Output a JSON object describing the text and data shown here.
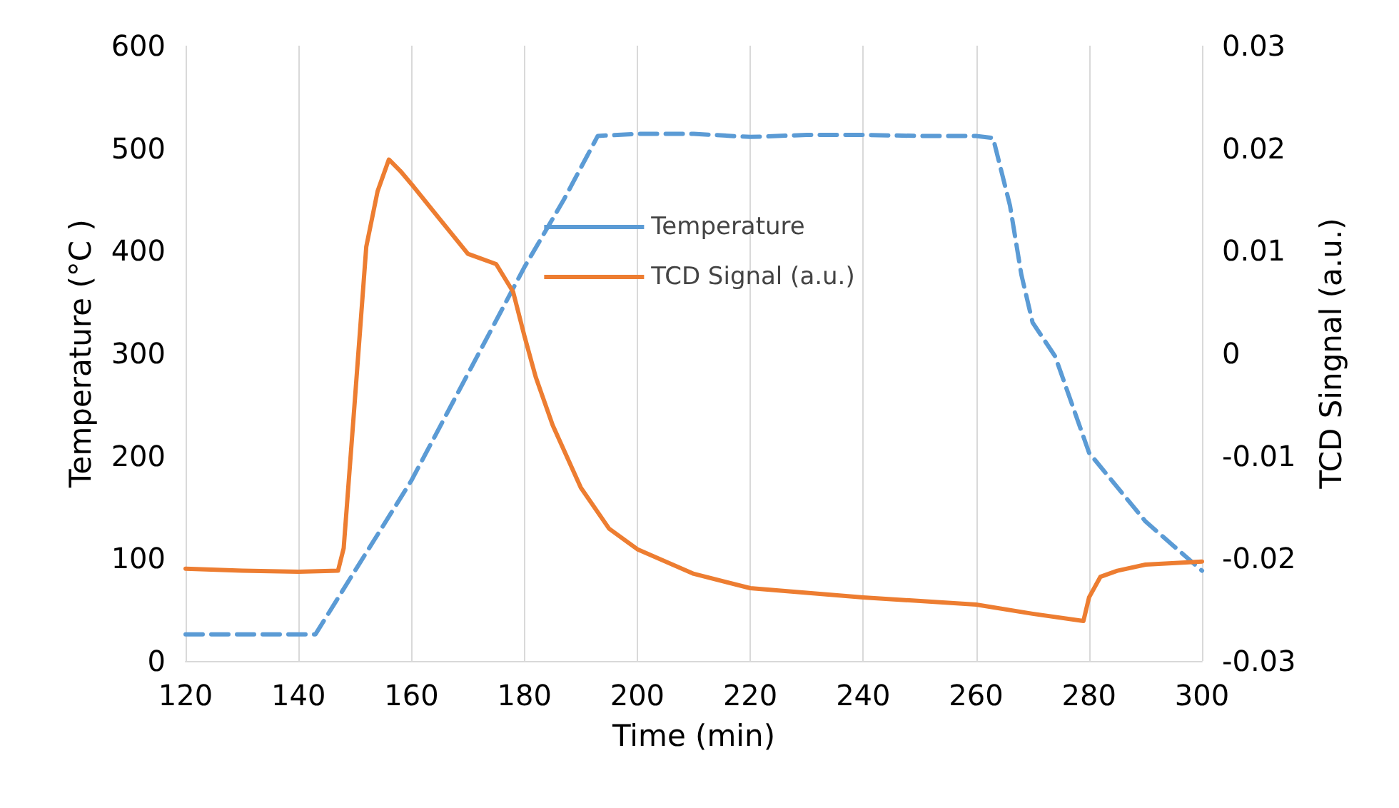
{
  "chart_data": {
    "type": "line",
    "xlabel": "Time (min)",
    "ylabel": "Temperature (°C )",
    "y2label": "TCD Singnal (a.u.)",
    "xlim": [
      120,
      300
    ],
    "xticks": [
      120,
      140,
      160,
      180,
      200,
      220,
      240,
      260,
      280,
      300
    ],
    "ylim": [
      0,
      600
    ],
    "yticks": [
      0,
      100,
      200,
      300,
      400,
      500,
      600
    ],
    "y2lim": [
      -0.03,
      0.03
    ],
    "y2ticks": [
      -0.03,
      -0.02,
      -0.01,
      0,
      0.01,
      0.02,
      0.03
    ],
    "grid": "x",
    "legend": "top",
    "marker": "none",
    "series": [
      {
        "name": "Temperature",
        "color": "#5b9bd5",
        "line_style": "dashed",
        "x": [
          120,
          130,
          143,
          150,
          160,
          170,
          180,
          187,
          193,
          200,
          210,
          220,
          230,
          240,
          250,
          260,
          263,
          266,
          268,
          270,
          274,
          280,
          290,
          300
        ],
        "values": [
          26,
          26,
          26,
          88,
          176,
          280,
          384,
          450,
          512,
          514,
          514,
          511,
          513,
          513,
          512,
          512,
          510,
          444,
          377,
          330,
          297,
          203,
          136,
          88
        ]
      },
      {
        "name": "TCD Signal (a.u.)",
        "color": "#ed7d31",
        "line_style": "solid",
        "axis": "y2",
        "x": [
          120,
          130,
          140,
          147,
          148,
          150,
          152,
          154,
          156,
          158,
          160,
          165,
          170,
          175,
          178,
          180,
          182,
          185,
          190,
          195,
          200,
          210,
          220,
          240,
          260,
          270,
          279,
          280,
          282,
          285,
          290,
          300
        ],
        "values": [
          -0.021,
          -0.0212,
          -0.0213,
          -0.0212,
          -0.019,
          -0.0044,
          0.0104,
          0.0158,
          0.0189,
          0.0178,
          0.0165,
          0.0131,
          0.0097,
          0.0087,
          0.006,
          0.0017,
          -0.0023,
          -0.007,
          -0.0131,
          -0.0171,
          -0.0191,
          -0.0215,
          -0.0229,
          -0.0238,
          -0.0245,
          -0.0254,
          -0.0261,
          -0.0238,
          -0.0218,
          -0.0212,
          -0.0206,
          -0.0203
        ]
      }
    ]
  }
}
